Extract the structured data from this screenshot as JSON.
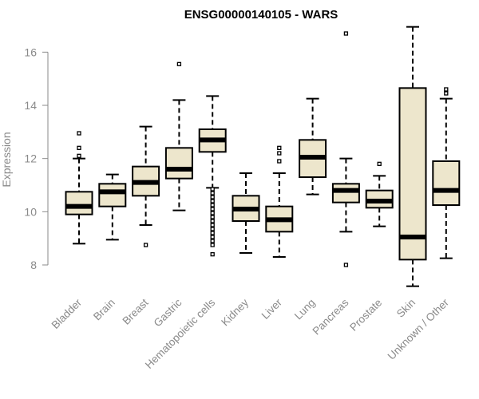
{
  "chart_data": {
    "type": "boxplot",
    "title": "ENSG00000140105 - WARS",
    "xlabel": "",
    "ylabel": "Expression",
    "ylim": [
      7.1,
      17.3
    ],
    "yticks": [
      8,
      10,
      12,
      14,
      16
    ],
    "box_fill": "#ede6cc",
    "categories": [
      "Bladder",
      "Brain",
      "Breast",
      "Gastric",
      "Hematopoietic cells",
      "Kidney",
      "Liver",
      "Lung",
      "Pancreas",
      "Prostate",
      "Skin",
      "Unknown / Other"
    ],
    "boxes": [
      {
        "name": "Bladder",
        "whislo": 8.8,
        "q1": 9.9,
        "med": 10.2,
        "q3": 10.75,
        "whishi": 12.0,
        "fliers": [
          12.1,
          12.4,
          12.95
        ]
      },
      {
        "name": "Brain",
        "whislo": 8.95,
        "q1": 10.2,
        "med": 10.75,
        "q3": 11.05,
        "whishi": 11.4,
        "fliers": []
      },
      {
        "name": "Breast",
        "whislo": 9.5,
        "q1": 10.6,
        "med": 11.1,
        "q3": 11.7,
        "whishi": 13.2,
        "fliers": [
          8.75
        ]
      },
      {
        "name": "Gastric",
        "whislo": 10.05,
        "q1": 11.25,
        "med": 11.6,
        "q3": 12.4,
        "whishi": 14.2,
        "fliers": [
          15.55
        ]
      },
      {
        "name": "Hematopoietic cells",
        "whislo": 10.9,
        "q1": 12.25,
        "med": 12.7,
        "q3": 13.1,
        "whishi": 14.35,
        "fliers": [
          10.85,
          10.7,
          10.55,
          10.4,
          10.25,
          10.1,
          9.95,
          9.8,
          9.65,
          9.5,
          9.35,
          9.2,
          9.05,
          8.9,
          8.75,
          8.4
        ]
      },
      {
        "name": "Kidney",
        "whislo": 8.45,
        "q1": 9.65,
        "med": 10.1,
        "q3": 10.6,
        "whishi": 11.45,
        "fliers": []
      },
      {
        "name": "Liver",
        "whislo": 8.3,
        "q1": 9.25,
        "med": 9.7,
        "q3": 10.2,
        "whishi": 11.45,
        "fliers": [
          11.9,
          12.2,
          12.4
        ]
      },
      {
        "name": "Lung",
        "whislo": 10.65,
        "q1": 11.3,
        "med": 12.05,
        "q3": 12.7,
        "whishi": 14.25,
        "fliers": []
      },
      {
        "name": "Pancreas",
        "whislo": 9.25,
        "q1": 10.35,
        "med": 10.8,
        "q3": 11.05,
        "whishi": 12.0,
        "fliers": [
          8.0,
          16.7
        ]
      },
      {
        "name": "Prostate",
        "whislo": 9.45,
        "q1": 10.15,
        "med": 10.4,
        "q3": 10.8,
        "whishi": 11.35,
        "fliers": [
          11.8
        ]
      },
      {
        "name": "Skin",
        "whislo": 7.2,
        "q1": 8.2,
        "med": 9.05,
        "q3": 14.65,
        "whishi": 16.95,
        "fliers": []
      },
      {
        "name": "Unknown / Other",
        "whislo": 8.25,
        "q1": 10.25,
        "med": 10.8,
        "q3": 11.9,
        "whishi": 14.25,
        "fliers": [
          14.45,
          14.6
        ]
      }
    ]
  }
}
